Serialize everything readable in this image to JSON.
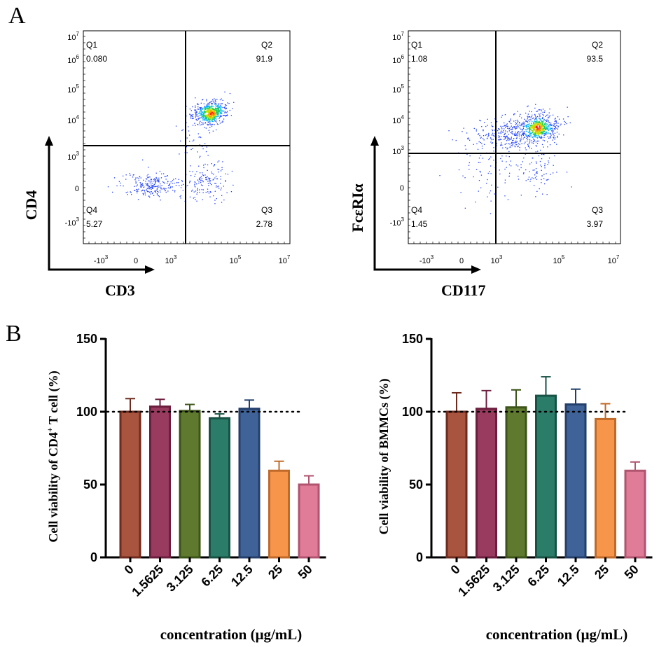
{
  "panel_labels": {
    "a": "A",
    "b": "B"
  },
  "flow_tick_labels": {
    "y": [
      {
        "base": "10",
        "exp": "7"
      },
      {
        "base": "10",
        "exp": "6"
      },
      {
        "base": "10",
        "exp": "5"
      },
      {
        "base": "10",
        "exp": "4"
      },
      {
        "base": "10",
        "exp": "3"
      },
      {
        "base": "0",
        "exp": ""
      },
      {
        "base": "-10",
        "exp": "3"
      }
    ],
    "x": [
      {
        "base": "-10",
        "exp": "3"
      },
      {
        "base": "0",
        "exp": ""
      },
      {
        "base": "10",
        "exp": "3"
      },
      {
        "base": "10",
        "exp": "5"
      },
      {
        "base": "10",
        "exp": "7"
      }
    ]
  },
  "chart_data": [
    {
      "type": "scatter",
      "subtype": "flow-cytometry-density-plot",
      "xlabel": "CD3",
      "ylabel": "CD4",
      "quadrants": [
        {
          "name": "Q1",
          "value": "0.080"
        },
        {
          "name": "Q2",
          "value": "91.9"
        },
        {
          "name": "Q3",
          "value": "2.78"
        },
        {
          "name": "Q4",
          "value": "5.27"
        }
      ]
    },
    {
      "type": "scatter",
      "subtype": "flow-cytometry-density-plot",
      "xlabel": "CD117",
      "ylabel": "FcεRIα",
      "quadrants": [
        {
          "name": "Q1",
          "value": "1.08"
        },
        {
          "name": "Q2",
          "value": "93.5"
        },
        {
          "name": "Q3",
          "value": "3.97"
        },
        {
          "name": "Q4",
          "value": "1.45"
        }
      ]
    },
    {
      "type": "bar",
      "ylabel_pre": "Cell viability of CD4",
      "ylabel_sup": "+",
      "ylabel_post": " T cell (%)",
      "xlabel": "concentration (μg/mL)",
      "categories": [
        "0",
        "1.5625",
        "3.125",
        "6.25",
        "12.5",
        "25",
        "50"
      ],
      "values": [
        100,
        103.5,
        100.5,
        95.5,
        102,
        59.5,
        50
      ],
      "errors": [
        9,
        5,
        4.5,
        3,
        6,
        6.5,
        6
      ],
      "colors": [
        "#a8543e",
        "#993a5f",
        "#5f7a2e",
        "#2b7d6a",
        "#3f6399",
        "#f7954a",
        "#e07c98"
      ],
      "edge_colors": [
        "#6e2a1c",
        "#6b1e3d",
        "#3c5418",
        "#175244",
        "#243f6b",
        "#c06a2a",
        "#b05470"
      ],
      "ylim": [
        0,
        150
      ],
      "yticks": [
        "0",
        "50",
        "100",
        "150"
      ],
      "reference_line": 100
    },
    {
      "type": "bar",
      "ylabel_pre": "Cell viability of BMMCs (%)",
      "ylabel_sup": "",
      "ylabel_post": "",
      "xlabel": "concentration (μg/mL)",
      "categories": [
        "0",
        "1.5625",
        "3.125",
        "6.25",
        "12.5",
        "25",
        "50"
      ],
      "values": [
        100,
        102,
        103,
        111,
        105,
        95,
        59.5
      ],
      "errors": [
        13,
        12.5,
        12,
        13,
        10.5,
        10.5,
        6
      ],
      "colors": [
        "#a8543e",
        "#993a5f",
        "#5f7a2e",
        "#2b7d6a",
        "#3f6399",
        "#f7954a",
        "#e07c98"
      ],
      "edge_colors": [
        "#6e2a1c",
        "#6b1e3d",
        "#3c5418",
        "#175244",
        "#243f6b",
        "#c06a2a",
        "#b05470"
      ],
      "ylim": [
        0,
        150
      ],
      "yticks": [
        "0",
        "50",
        "100",
        "150"
      ],
      "reference_line": 100
    }
  ]
}
